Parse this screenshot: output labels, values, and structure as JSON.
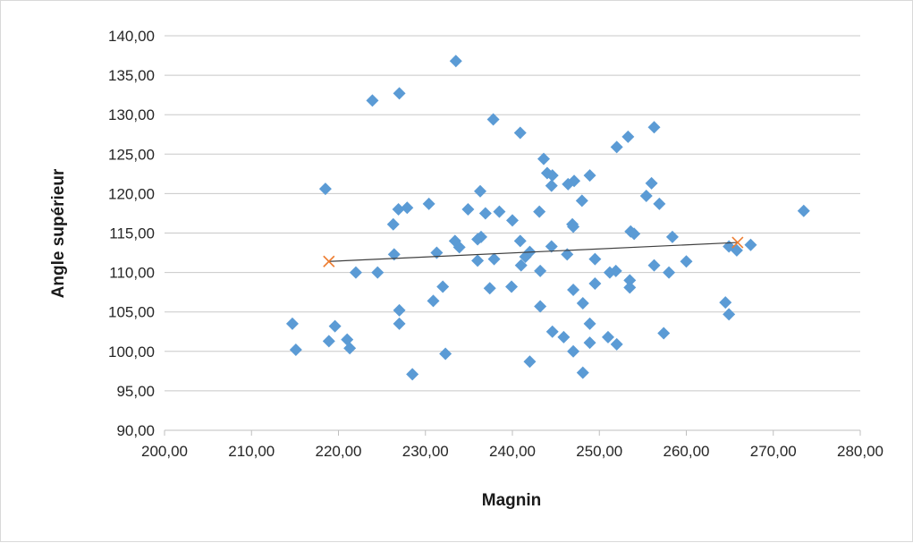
{
  "chart_data": {
    "type": "scatter",
    "title": "",
    "xlabel": "Magnin",
    "ylabel": "Angle supérieur",
    "xlim": [
      200,
      280
    ],
    "ylim": [
      90,
      140
    ],
    "x_ticks": [
      200,
      210,
      220,
      230,
      240,
      250,
      260,
      270,
      280
    ],
    "y_ticks": [
      90,
      95,
      100,
      105,
      110,
      115,
      120,
      125,
      130,
      135,
      140
    ],
    "x_tick_labels": [
      "200,00",
      "210,00",
      "220,00",
      "230,00",
      "240,00",
      "250,00",
      "260,00",
      "270,00",
      "280,00"
    ],
    "y_tick_labels": [
      "90,00",
      "95,00",
      "100,00",
      "105,00",
      "110,00",
      "115,00",
      "120,00",
      "125,00",
      "130,00",
      "135,00",
      "140,00"
    ],
    "grid": "horizontal",
    "legend": "none",
    "series": [
      {
        "marker": "diamond",
        "color": "#5b9bd5",
        "points": [
          [
            214.7,
            103.5
          ],
          [
            215.1,
            100.2
          ],
          [
            218.5,
            120.6
          ],
          [
            218.9,
            101.3
          ],
          [
            219.6,
            103.2
          ],
          [
            221.0,
            101.5
          ],
          [
            221.3,
            100.4
          ],
          [
            222.0,
            110.0
          ],
          [
            223.9,
            131.8
          ],
          [
            224.5,
            110.0
          ],
          [
            226.3,
            116.1
          ],
          [
            226.4,
            112.3
          ],
          [
            226.9,
            118.0
          ],
          [
            227.0,
            132.7
          ],
          [
            227.0,
            105.2
          ],
          [
            227.0,
            103.5
          ],
          [
            227.9,
            118.2
          ],
          [
            228.5,
            97.1
          ],
          [
            230.4,
            118.7
          ],
          [
            230.9,
            106.4
          ],
          [
            231.3,
            112.5
          ],
          [
            232.0,
            108.2
          ],
          [
            232.3,
            99.7
          ],
          [
            233.5,
            136.8
          ],
          [
            233.4,
            114.0
          ],
          [
            233.9,
            113.2
          ],
          [
            234.9,
            118.0
          ],
          [
            236.0,
            114.2
          ],
          [
            236.0,
            111.5
          ],
          [
            236.3,
            120.3
          ],
          [
            236.4,
            114.5
          ],
          [
            236.9,
            117.5
          ],
          [
            237.4,
            108.0
          ],
          [
            237.8,
            129.4
          ],
          [
            237.9,
            111.7
          ],
          [
            238.5,
            117.7
          ],
          [
            239.9,
            108.2
          ],
          [
            240.0,
            116.6
          ],
          [
            240.9,
            127.7
          ],
          [
            240.9,
            114.0
          ],
          [
            241.0,
            110.9
          ],
          [
            241.5,
            112.0
          ],
          [
            242.0,
            112.6
          ],
          [
            242.0,
            98.7
          ],
          [
            243.1,
            117.7
          ],
          [
            243.2,
            110.2
          ],
          [
            243.2,
            105.7
          ],
          [
            243.6,
            124.4
          ],
          [
            244.0,
            122.6
          ],
          [
            244.5,
            121.0
          ],
          [
            244.5,
            113.3
          ],
          [
            244.6,
            122.3
          ],
          [
            244.6,
            102.5
          ],
          [
            245.9,
            101.8
          ],
          [
            246.3,
            112.3
          ],
          [
            246.4,
            121.2
          ],
          [
            246.9,
            116.1
          ],
          [
            247.0,
            107.8
          ],
          [
            247.0,
            100.0
          ],
          [
            247.1,
            121.6
          ],
          [
            247.0,
            115.8
          ],
          [
            248.0,
            119.1
          ],
          [
            248.1,
            106.1
          ],
          [
            248.1,
            97.3
          ],
          [
            248.9,
            122.3
          ],
          [
            248.9,
            103.5
          ],
          [
            248.9,
            101.1
          ],
          [
            249.5,
            111.7
          ],
          [
            249.5,
            108.6
          ],
          [
            251.0,
            101.8
          ],
          [
            251.2,
            110.0
          ],
          [
            251.9,
            110.2
          ],
          [
            252.0,
            125.9
          ],
          [
            252.0,
            100.9
          ],
          [
            253.3,
            127.2
          ],
          [
            253.5,
            109.0
          ],
          [
            253.5,
            108.1
          ],
          [
            253.6,
            115.2
          ],
          [
            254.0,
            114.9
          ],
          [
            255.4,
            119.7
          ],
          [
            256.0,
            121.3
          ],
          [
            256.3,
            128.4
          ],
          [
            256.3,
            110.9
          ],
          [
            256.9,
            118.7
          ],
          [
            257.4,
            102.3
          ],
          [
            258.0,
            110.0
          ],
          [
            258.4,
            114.5
          ],
          [
            260.0,
            111.4
          ],
          [
            264.5,
            106.2
          ],
          [
            264.9,
            113.3
          ],
          [
            264.9,
            104.7
          ],
          [
            265.8,
            112.8
          ],
          [
            267.4,
            113.5
          ],
          [
            273.5,
            117.8
          ]
        ]
      }
    ],
    "trendline": {
      "color": "#404040",
      "endpoint_marker": "x",
      "endpoint_color": "#ed7d31",
      "from": [
        218.9,
        111.4
      ],
      "to": [
        265.9,
        113.8
      ]
    }
  }
}
